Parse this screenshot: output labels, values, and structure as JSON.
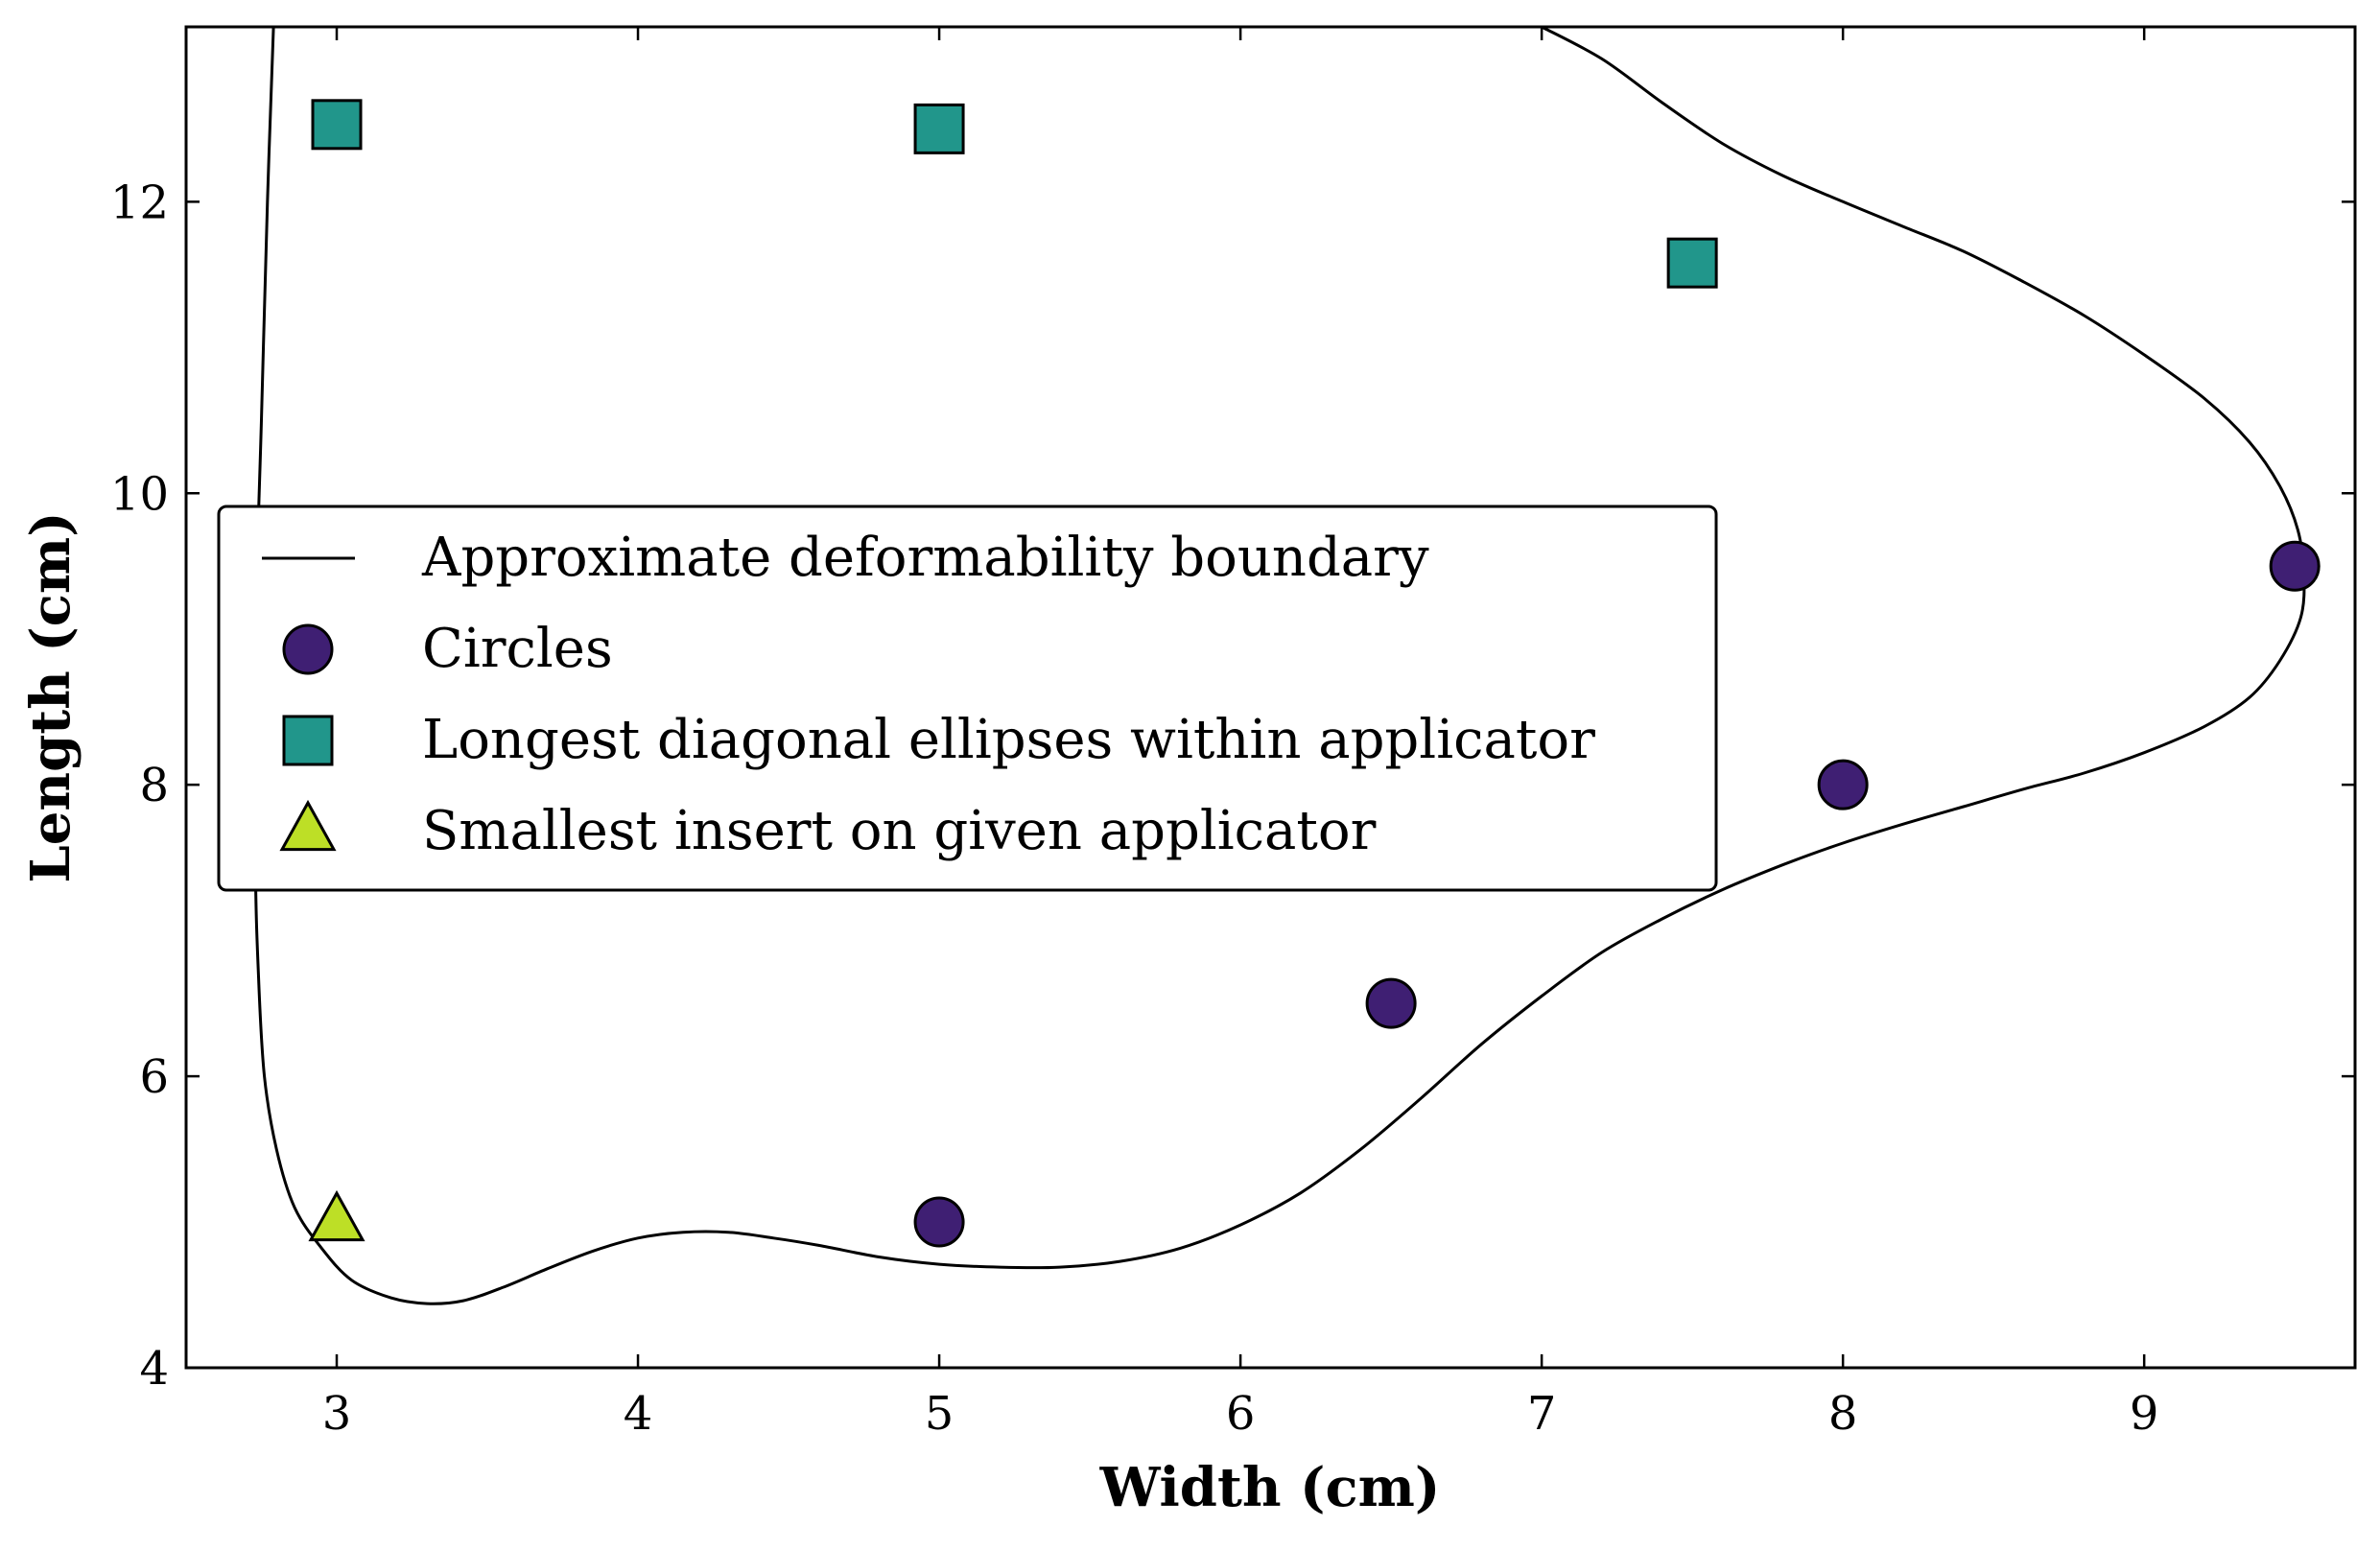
{
  "chart_data": {
    "type": "scatter",
    "title": "",
    "xlabel": "Width (cm)",
    "ylabel": "Length (cm)",
    "xlim": [
      2.5,
      9.7
    ],
    "ylim": [
      4,
      13.2
    ],
    "xticks": [
      3,
      4,
      5,
      6,
      7,
      8,
      9
    ],
    "yticks": [
      4,
      6,
      8,
      10,
      12
    ],
    "x_tick_labels": [
      "3",
      "4",
      "5",
      "6",
      "7",
      "8",
      "9"
    ],
    "y_tick_labels": [
      "4",
      "6",
      "8",
      "10",
      "12"
    ],
    "grid": false,
    "legend_position": "center-left",
    "boundary": {
      "name": "Approximate deformability boundary",
      "color": "#000000",
      "x": [
        2.79,
        2.77,
        2.75,
        2.73,
        2.73,
        2.74,
        2.76,
        2.8,
        2.86,
        2.95,
        3.05,
        3.18,
        3.3,
        3.42,
        3.55,
        3.7,
        3.85,
        4.0,
        4.15,
        4.3,
        4.45,
        4.6,
        4.8,
        5.0,
        5.2,
        5.4,
        5.6,
        5.8,
        6.0,
        6.2,
        6.4,
        6.6,
        6.8,
        7.0,
        7.2,
        7.4,
        7.6,
        7.8,
        8.0,
        8.2,
        8.4,
        8.6,
        8.8,
        9.0,
        9.2,
        9.35,
        9.45,
        9.52,
        9.53,
        9.51,
        9.45,
        9.35,
        9.2,
        9.0,
        8.8,
        8.6,
        8.4,
        8.2,
        8.0,
        7.8,
        7.6,
        7.4,
        7.2,
        7.0
      ],
      "y": [
        13.2,
        12.0,
        10.5,
        9.0,
        7.5,
        6.7,
        6.0,
        5.5,
        5.1,
        4.82,
        4.6,
        4.48,
        4.44,
        4.46,
        4.55,
        4.68,
        4.8,
        4.89,
        4.93,
        4.93,
        4.89,
        4.84,
        4.76,
        4.71,
        4.69,
        4.69,
        4.73,
        4.82,
        4.98,
        5.2,
        5.5,
        5.85,
        6.22,
        6.55,
        6.85,
        7.08,
        7.28,
        7.45,
        7.6,
        7.73,
        7.85,
        7.97,
        8.08,
        8.22,
        8.4,
        8.6,
        8.85,
        9.15,
        9.45,
        9.75,
        10.05,
        10.35,
        10.65,
        10.95,
        11.22,
        11.45,
        11.66,
        11.83,
        12.0,
        12.18,
        12.4,
        12.68,
        12.98,
        13.2
      ]
    },
    "series": [
      {
        "name": "Circles",
        "marker": "circle",
        "color": "#3f1f73",
        "x": [
          5.0,
          6.5,
          8.0,
          9.5
        ],
        "y": [
          5.0,
          6.5,
          8.0,
          9.5
        ]
      },
      {
        "name": "Longest diagonal ellipses within applicator",
        "marker": "square",
        "color": "#21968b",
        "x": [
          3.0,
          5.0,
          7.5
        ],
        "y": [
          12.53,
          12.5,
          11.58
        ]
      },
      {
        "name": "Smallest insert on given applicator",
        "marker": "triangle",
        "color": "#bddf26",
        "x": [
          3.0
        ],
        "y": [
          5.0
        ]
      }
    ]
  }
}
